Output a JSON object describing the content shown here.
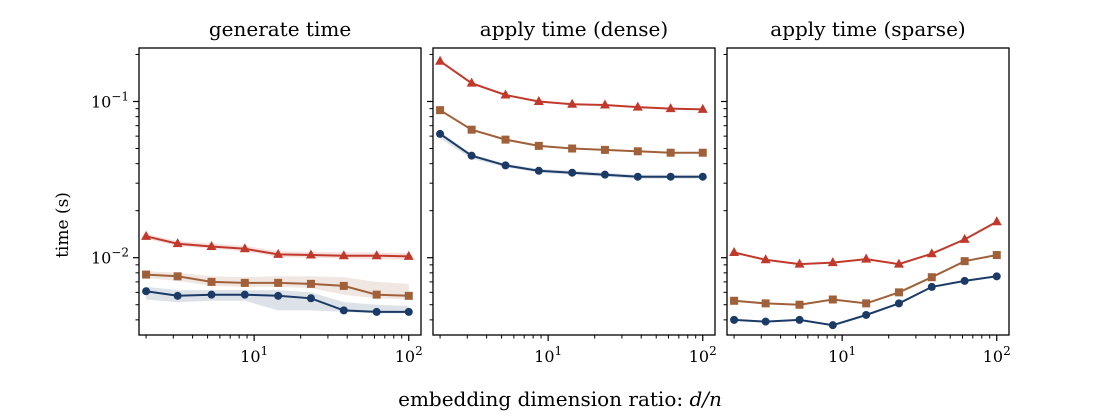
{
  "figure": {
    "xlabel_prefix": "embedding dimension ratio: ",
    "xlabel_var": "d/n",
    "ylabel": "time (s)"
  },
  "chart_data": [
    {
      "type": "line",
      "title": "generate time",
      "xscale": "log",
      "yscale": "log",
      "xlim": [
        1.8,
        120
      ],
      "ylim": [
        0.0032,
        0.22
      ],
      "xticks": [
        {
          "v": 10,
          "base": "10",
          "exp": "1"
        },
        {
          "v": 100,
          "base": "10",
          "exp": "2"
        }
      ],
      "yticks": [
        {
          "v": 0.1,
          "base": "10",
          "exp": "−1"
        },
        {
          "v": 0.01,
          "base": "10",
          "exp": "−2"
        }
      ],
      "x": [
        2,
        3.2,
        5.3,
        8.7,
        14.3,
        23.3,
        38,
        62,
        100
      ],
      "series": [
        {
          "color": "#c0392b",
          "marker": "triangle",
          "values": [
            0.0137,
            0.0123,
            0.0118,
            0.0114,
            0.0105,
            0.0104,
            0.0103,
            0.0103,
            0.0102
          ],
          "lower": [
            0.0132,
            0.0119,
            0.0114,
            0.011,
            0.0101,
            0.01,
            0.0099,
            0.0098,
            0.0097
          ],
          "upper": [
            0.0142,
            0.0128,
            0.0123,
            0.0119,
            0.011,
            0.0109,
            0.0108,
            0.0108,
            0.0107
          ]
        },
        {
          "color": "#a0603a",
          "marker": "square",
          "values": [
            0.0078,
            0.0076,
            0.007,
            0.0069,
            0.0069,
            0.0068,
            0.0066,
            0.0058,
            0.0057
          ],
          "lower": [
            0.0074,
            0.0071,
            0.0066,
            0.0065,
            0.0065,
            0.0064,
            0.0058,
            0.0055,
            0.0054
          ],
          "upper": [
            0.0082,
            0.008,
            0.0076,
            0.0075,
            0.0076,
            0.0076,
            0.0075,
            0.007,
            0.0068
          ]
        },
        {
          "color": "#1b3a66",
          "marker": "circle",
          "values": [
            0.0061,
            0.0057,
            0.0058,
            0.0058,
            0.0057,
            0.0055,
            0.0046,
            0.0045,
            0.0045
          ],
          "lower": [
            0.0054,
            0.0052,
            0.0053,
            0.0053,
            0.0046,
            0.0046,
            0.0045,
            0.0044,
            0.0044
          ],
          "upper": [
            0.0065,
            0.0062,
            0.0062,
            0.0062,
            0.0062,
            0.006,
            0.0052,
            0.005,
            0.0049
          ]
        }
      ]
    },
    {
      "type": "line",
      "title": "apply time (dense)",
      "xscale": "log",
      "yscale": "log",
      "xlim": [
        1.8,
        120
      ],
      "ylim": [
        0.0032,
        0.22
      ],
      "xticks": [
        {
          "v": 10,
          "base": "10",
          "exp": "1"
        },
        {
          "v": 100,
          "base": "10",
          "exp": "2"
        }
      ],
      "x": [
        2,
        3.2,
        5.3,
        8.7,
        14.3,
        23.3,
        38,
        62,
        100
      ],
      "series": [
        {
          "color": "#c0392b",
          "marker": "triangle",
          "values": [
            0.181,
            0.131,
            0.11,
            0.1,
            0.096,
            0.095,
            0.092,
            0.09,
            0.089
          ]
        },
        {
          "color": "#a0603a",
          "marker": "square",
          "values": [
            0.088,
            0.066,
            0.057,
            0.052,
            0.05,
            0.049,
            0.048,
            0.047,
            0.047
          ]
        },
        {
          "color": "#1b3a66",
          "marker": "circle",
          "values": [
            0.062,
            0.045,
            0.039,
            0.036,
            0.035,
            0.034,
            0.033,
            0.033,
            0.033
          ],
          "lower": [
            0.058,
            0.043,
            0.038,
            0.035,
            0.034,
            0.033,
            0.032,
            0.032,
            0.032
          ],
          "upper": [
            0.064,
            0.046,
            0.04,
            0.037,
            0.036,
            0.035,
            0.034,
            0.034,
            0.034
          ]
        }
      ]
    },
    {
      "type": "line",
      "title": "apply time (sparse)",
      "xscale": "log",
      "yscale": "log",
      "xlim": [
        1.8,
        120
      ],
      "ylim": [
        0.0032,
        0.22
      ],
      "xticks": [
        {
          "v": 10,
          "base": "10",
          "exp": "1"
        },
        {
          "v": 100,
          "base": "10",
          "exp": "2"
        }
      ],
      "x": [
        2,
        3.2,
        5.3,
        8.7,
        14.3,
        23.3,
        38,
        62,
        100
      ],
      "series": [
        {
          "color": "#c0392b",
          "marker": "triangle",
          "values": [
            0.0108,
            0.0097,
            0.0091,
            0.0093,
            0.0098,
            0.0091,
            0.0106,
            0.0131,
            0.017
          ]
        },
        {
          "color": "#a0603a",
          "marker": "square",
          "values": [
            0.0053,
            0.0051,
            0.005,
            0.0054,
            0.0051,
            0.006,
            0.0075,
            0.0095,
            0.0104
          ]
        },
        {
          "color": "#1b3a66",
          "marker": "circle",
          "values": [
            0.004,
            0.0039,
            0.004,
            0.0037,
            0.0043,
            0.0051,
            0.0065,
            0.0071,
            0.0076
          ]
        }
      ]
    }
  ]
}
